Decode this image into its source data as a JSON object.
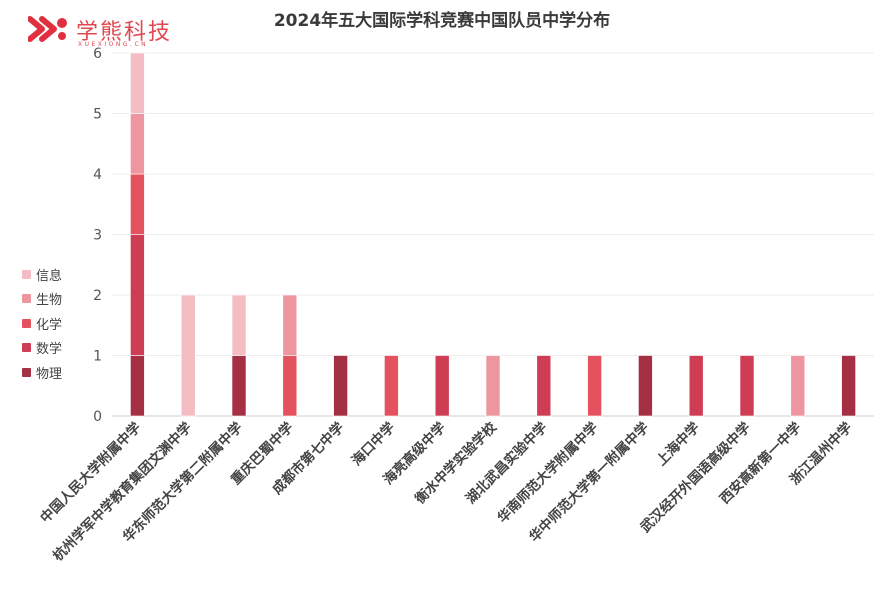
{
  "logo": {
    "text": "学熊科技",
    "sub": "XUEXIONG.CN"
  },
  "chart_data": {
    "type": "bar",
    "stacked": true,
    "title": "2024年五大国际学科竞赛中国队员中学分布",
    "xlabel": "",
    "ylabel": "",
    "ylim": [
      0,
      6
    ],
    "yticks": [
      "0",
      "1",
      "2",
      "3",
      "4",
      "5",
      "6"
    ],
    "grid": true,
    "legend_position": "left",
    "categories": [
      "中国人民大学附属中学",
      "杭州学军中学教育集团文渊中学",
      "华东师范大学第二附属中学",
      "重庆巴蜀中学",
      "成都市第七中学",
      "海口中学",
      "海亮高级中学",
      "衡水中学实验学校",
      "湖北武昌实验中学",
      "华南师范大学附属中学",
      "华中师范大学第一附属中学",
      "上海中学",
      "武汉经开外国语高级中学",
      "西安高新第一中学",
      "浙江温州中学"
    ],
    "series": [
      {
        "name": "物理",
        "color": "#a52f43",
        "values": [
          1,
          0,
          1,
          0,
          1,
          0,
          0,
          0,
          0,
          0,
          1,
          0,
          0,
          0,
          1
        ]
      },
      {
        "name": "数学",
        "color": "#cf3d54",
        "values": [
          2,
          0,
          0,
          0,
          0,
          0,
          1,
          0,
          1,
          0,
          0,
          1,
          1,
          0,
          0
        ]
      },
      {
        "name": "化学",
        "color": "#e5525f",
        "values": [
          1,
          0,
          0,
          1,
          0,
          1,
          0,
          0,
          0,
          1,
          0,
          0,
          0,
          0,
          0
        ]
      },
      {
        "name": "生物",
        "color": "#ed96a0",
        "values": [
          1,
          0,
          0,
          1,
          0,
          0,
          0,
          1,
          0,
          0,
          0,
          0,
          0,
          1,
          0
        ]
      },
      {
        "name": "信息",
        "color": "#f4bdc3",
        "values": [
          1,
          2,
          1,
          0,
          0,
          0,
          0,
          0,
          0,
          0,
          0,
          0,
          0,
          0,
          0
        ]
      }
    ]
  }
}
